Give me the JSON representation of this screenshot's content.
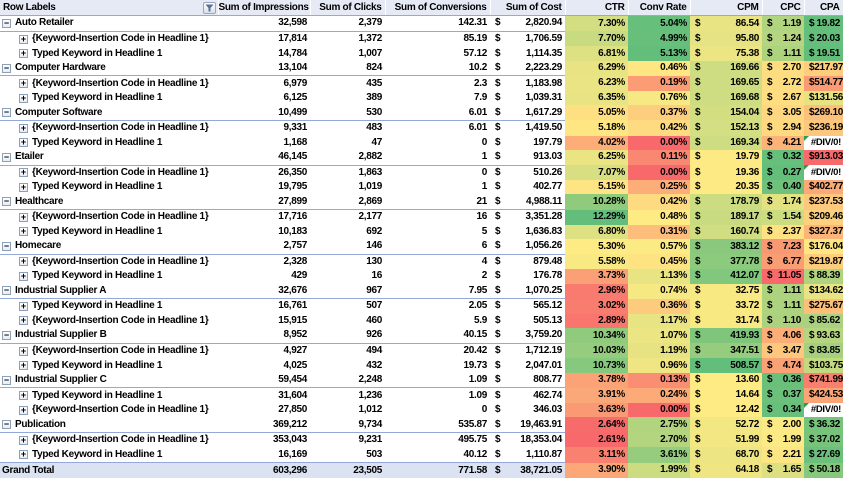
{
  "colors": {
    "border": "#95A9D8",
    "header_bg": "#E6EAF5",
    "grand_bg": "#DBE3F3",
    "error_triangle": "#2F9E41"
  },
  "icons": {
    "collapse": "−",
    "expand": "+",
    "filter": "funnel-icon"
  },
  "columns": [
    "Row Labels",
    "Sum of Impressions",
    "Sum of Clicks",
    "Sum of Conversions",
    "Sum of Cost",
    "CTR",
    "Conv Rate",
    "CPM",
    "CPC",
    "CPA"
  ],
  "rows": [
    {
      "type": "cat",
      "label": "Auto Retailer",
      "imp": "32,598",
      "clk": "2,379",
      "cnv": "142.31",
      "cost": "2,820.94",
      "ctr": [
        "7.30%",
        "#D2DE81"
      ],
      "cvr": [
        "5.04%",
        "#66BF7B"
      ],
      "cpm": [
        "86.54",
        "#E8E483"
      ],
      "cpc": [
        "1.19",
        "#B0D47F"
      ],
      "cpa": [
        "19.82",
        "#64BE7B"
      ]
    },
    {
      "type": "child",
      "label": "{Keyword-Insertion Code in Headline 1}",
      "imp": "17,814",
      "clk": "1,372",
      "cnv": "85.19",
      "cost": "1,706.59",
      "ctr": [
        "7.70%",
        "#C9DB80"
      ],
      "cvr": [
        "4.99%",
        "#68BF7B"
      ],
      "cpm": [
        "95.80",
        "#E5E383"
      ],
      "cpc": [
        "1.24",
        "#B6D580"
      ],
      "cpa": [
        "20.03",
        "#65BE7B"
      ]
    },
    {
      "type": "child",
      "label": "Typed Keyword in Headline 1",
      "imp": "14,784",
      "clk": "1,007",
      "cnv": "57.12",
      "cost": "1,114.35",
      "ctr": [
        "6.81%",
        "#DDE182"
      ],
      "cvr": [
        "5.13%",
        "#63BE7B"
      ],
      "cpm": [
        "75.38",
        "#EBE583"
      ],
      "cpc": [
        "1.11",
        "#ADD37F"
      ],
      "cpa": [
        "19.51",
        "#63BE7B"
      ]
    },
    {
      "type": "cat",
      "label": "Computer Hardware",
      "imp": "13,104",
      "clk": "824",
      "cnv": "10.2",
      "cost": "2,223.29",
      "ctr": [
        "6.29%",
        "#E9E483"
      ],
      "cvr": [
        "0.46%",
        "#FEE683"
      ],
      "cpm": [
        "169.66",
        "#CEDD81"
      ],
      "cpc": [
        "2.70",
        "#FEDD81"
      ],
      "cpa": [
        "217.97",
        "#FDCE7E"
      ]
    },
    {
      "type": "child",
      "label": "{Keyword-Insertion Code in Headline 1}",
      "imp": "6,979",
      "clk": "435",
      "cnv": "2.3",
      "cost": "1,183.98",
      "ctr": [
        "6.23%",
        "#EAE483"
      ],
      "cvr": [
        "0.19%",
        "#FB9C75"
      ],
      "cpm": [
        "169.65",
        "#CEDD81"
      ],
      "cpc": [
        "2.72",
        "#FEDD81"
      ],
      "cpa": [
        "514.77",
        "#FA9B73"
      ]
    },
    {
      "type": "child",
      "label": "Typed Keyword in Headline 1",
      "imp": "6,125",
      "clk": "389",
      "cnv": "7.9",
      "cost": "1,039.31",
      "ctr": [
        "6.35%",
        "#E8E383"
      ],
      "cvr": [
        "0.76%",
        "#F6E883"
      ],
      "cpm": [
        "169.68",
        "#CEDD81"
      ],
      "cpc": [
        "2.67",
        "#FEDE81"
      ],
      "cpa": [
        "131.56",
        "#E6E383"
      ]
    },
    {
      "type": "cat",
      "label": "Computer Software",
      "imp": "10,499",
      "clk": "530",
      "cnv": "6.01",
      "cost": "1,617.29",
      "ctr": [
        "5.05%",
        "#FEDF82"
      ],
      "cvr": [
        "0.37%",
        "#FDCE7E"
      ],
      "cpm": [
        "154.04",
        "#D3DE81"
      ],
      "cpc": [
        "3.05",
        "#FED780"
      ],
      "cpa": [
        "269.10",
        "#FCC07B"
      ]
    },
    {
      "type": "child",
      "label": "{Keyword-Insertion Code in Headline 1}",
      "imp": "9,331",
      "clk": "483",
      "cnv": "6.01",
      "cost": "1,419.50",
      "ctr": [
        "5.18%",
        "#FEE683"
      ],
      "cvr": [
        "0.42%",
        "#FEDB81"
      ],
      "cpm": [
        "152.13",
        "#D4DE82"
      ],
      "cpc": [
        "2.94",
        "#FED980"
      ],
      "cpa": [
        "236.19",
        "#FDC87D"
      ]
    },
    {
      "type": "child",
      "label": "Typed Keyword in Headline 1",
      "imp": "1,168",
      "clk": "47",
      "cnv": "0",
      "cost": "197.79",
      "ctr": [
        "4.02%",
        "#FCAD78"
      ],
      "cvr": [
        "0.00%",
        "#F8696B"
      ],
      "cpm": [
        "169.34",
        "#CEDD81"
      ],
      "cpc": [
        "4.21",
        "#FCB377"
      ],
      "cpa": [
        "#DIV/0!",
        "#FFFFFF",
        "err"
      ]
    },
    {
      "type": "cat",
      "label": "Etailer",
      "imp": "46,145",
      "clk": "2,882",
      "cnv": "1",
      "cost": "913.03",
      "ctr": [
        "6.25%",
        "#EAE483"
      ],
      "cvr": [
        "0.11%",
        "#FA8771"
      ],
      "cpm": [
        "19.79",
        "#FDEA84"
      ],
      "cpc": [
        "0.32",
        "#66BF7B"
      ],
      "cpa": [
        "913.03",
        "#F8696B"
      ]
    },
    {
      "type": "child",
      "label": "{Keyword-Insertion Code in Headline 1}",
      "imp": "26,350",
      "clk": "1,863",
      "cnv": "0",
      "cost": "510.26",
      "ctr": [
        "7.07%",
        "#D8DF82"
      ],
      "cvr": [
        "0.00%",
        "#F8696B"
      ],
      "cpm": [
        "19.36",
        "#FDEA84"
      ],
      "cpc": [
        "0.27",
        "#63BE7B"
      ],
      "cpa": [
        "#DIV/0!",
        "#FFFFFF",
        "err"
      ]
    },
    {
      "type": "child",
      "label": "Typed Keyword in Headline 1",
      "imp": "19,795",
      "clk": "1,019",
      "cnv": "1",
      "cost": "402.77",
      "ctr": [
        "5.15%",
        "#FEE483"
      ],
      "cvr": [
        "0.25%",
        "#FCAD78"
      ],
      "cpm": [
        "20.35",
        "#FDEA84"
      ],
      "cpc": [
        "0.40",
        "#6FC17C"
      ],
      "cpa": [
        "402.77",
        "#FBA976"
      ]
    },
    {
      "type": "cat",
      "label": "Healthcare",
      "imp": "27,899",
      "clk": "2,869",
      "cnv": "21",
      "cost": "4,988.11",
      "ctr": [
        "10.28%",
        "#90CB7D"
      ],
      "cvr": [
        "0.42%",
        "#FEDB81"
      ],
      "cpm": [
        "178.79",
        "#CBDC81"
      ],
      "cpc": [
        "1.74",
        "#E2E282"
      ],
      "cpa": [
        "237.53",
        "#FDC87D"
      ]
    },
    {
      "type": "child",
      "label": "{Keyword-Insertion Code in Headline 1}",
      "imp": "17,716",
      "clk": "2,177",
      "cnv": "16",
      "cost": "3,351.28",
      "ctr": [
        "12.29%",
        "#63BE7B"
      ],
      "cvr": [
        "0.48%",
        "#FFEB84"
      ],
      "cpm": [
        "189.17",
        "#C8DB81"
      ],
      "cpc": [
        "1.54",
        "#CCDC81"
      ],
      "cpa": [
        "209.46",
        "#FDD07E"
      ]
    },
    {
      "type": "child",
      "label": "Typed Keyword in Headline 1",
      "imp": "10,183",
      "clk": "692",
      "cnv": "5",
      "cost": "1,636.83",
      "ctr": [
        "6.80%",
        "#DEE182"
      ],
      "cvr": [
        "0.31%",
        "#FDBD7B"
      ],
      "cpm": [
        "160.74",
        "#D1DD81"
      ],
      "cpc": [
        "2.37",
        "#FEE182"
      ],
      "cpa": [
        "327.37",
        "#FCB579"
      ]
    },
    {
      "type": "cat",
      "label": "Homecare",
      "imp": "2,757",
      "clk": "146",
      "cnv": "6",
      "cost": "1,056.26",
      "ctr": [
        "5.30%",
        "#FFEB84"
      ],
      "cvr": [
        "0.57%",
        "#FCEA84"
      ],
      "cpm": [
        "383.12",
        "#8AC97D"
      ],
      "cpc": [
        "7.23",
        "#F99973"
      ],
      "cpa": [
        "176.04",
        "#FEE783"
      ]
    },
    {
      "type": "child",
      "label": "{Keyword-Insertion Code in Headline 1}",
      "imp": "2,328",
      "clk": "130",
      "cnv": "4",
      "cost": "879.48",
      "ctr": [
        "5.58%",
        "#F9E983"
      ],
      "cvr": [
        "0.45%",
        "#FEE382"
      ],
      "cpm": [
        "377.78",
        "#8CCA7E"
      ],
      "cpc": [
        "6.77",
        "#F99D74"
      ],
      "cpa": [
        "219.87",
        "#FDCD7E"
      ]
    },
    {
      "type": "child",
      "label": "Typed Keyword in Headline 1",
      "imp": "429",
      "clk": "16",
      "cnv": "2",
      "cost": "176.78",
      "ctr": [
        "3.73%",
        "#FB9F76"
      ],
      "cvr": [
        "1.13%",
        "#E9E483"
      ],
      "cpm": [
        "412.07",
        "#81C77D"
      ],
      "cpc": [
        "11.05",
        "#F8696B"
      ],
      "cpa": [
        "88.39",
        "#AFD37F"
      ]
    },
    {
      "type": "cat",
      "label": "Industrial Supplier A",
      "imp": "32,676",
      "clk": "967",
      "cnv": "7.95",
      "cost": "1,070.25",
      "ctr": [
        "2.96%",
        "#F97A6E"
      ],
      "cvr": [
        "0.74%",
        "#F6E883"
      ],
      "cpm": [
        "32.75",
        "#F9E983"
      ],
      "cpc": [
        "1.11",
        "#ADD37F"
      ],
      "cpa": [
        "134.62",
        "#E9E483"
      ]
    },
    {
      "type": "child",
      "label": "Typed Keyword in Headline 1",
      "imp": "16,761",
      "clk": "507",
      "cnv": "2.05",
      "cost": "565.12",
      "ctr": [
        "3.02%",
        "#F97D6E"
      ],
      "cvr": [
        "0.36%",
        "#FDCB7E"
      ],
      "cpm": [
        "33.72",
        "#F9E983"
      ],
      "cpc": [
        "1.11",
        "#ADD37F"
      ],
      "cpa": [
        "275.67",
        "#FCBE7B"
      ]
    },
    {
      "type": "child",
      "label": "{Keyword-Insertion Code in Headline 1}",
      "imp": "15,915",
      "clk": "460",
      "cnv": "5.9",
      "cost": "505.13",
      "ctr": [
        "2.89%",
        "#F8766D"
      ],
      "cvr": [
        "1.17%",
        "#E8E483"
      ],
      "cpm": [
        "31.74",
        "#F9E983"
      ],
      "cpc": [
        "1.10",
        "#ACD27F"
      ],
      "cpa": [
        "85.62",
        "#A9D17F"
      ]
    },
    {
      "type": "cat",
      "label": "Industrial Supplier B",
      "imp": "8,952",
      "clk": "926",
      "cnv": "40.15",
      "cost": "3,759.20",
      "ctr": [
        "10.34%",
        "#8FCA7D"
      ],
      "cvr": [
        "1.07%",
        "#EBE583"
      ],
      "cpm": [
        "419.93",
        "#7FC67C"
      ],
      "cpc": [
        "4.06",
        "#FBAE78"
      ],
      "cpa": [
        "93.63",
        "#B5D580"
      ]
    },
    {
      "type": "child",
      "label": "{Keyword-Insertion Code in Headline 1}",
      "imp": "4,927",
      "clk": "494",
      "cnv": "20.42",
      "cost": "1,712.19",
      "ctr": [
        "10.03%",
        "#95CC7E"
      ],
      "cvr": [
        "1.19%",
        "#E7E383"
      ],
      "cpm": [
        "347.51",
        "#95CC7E"
      ],
      "cpc": [
        "3.47",
        "#FDC87D"
      ],
      "cpa": [
        "83.85",
        "#A5D07F"
      ]
    },
    {
      "type": "child",
      "label": "Typed Keyword in Headline 1",
      "imp": "4,025",
      "clk": "432",
      "cnv": "19.73",
      "cost": "2,047.01",
      "ctr": [
        "10.73%",
        "#86C87D"
      ],
      "cvr": [
        "0.96%",
        "#EFE683"
      ],
      "cpm": [
        "508.57",
        "#63BE7B"
      ],
      "cpc": [
        "4.74",
        "#FAA175"
      ],
      "cpa": [
        "103.75",
        "#C2D980"
      ]
    },
    {
      "type": "cat",
      "label": "Industrial Supplier C",
      "imp": "59,454",
      "clk": "2,248",
      "cnv": "1.09",
      "cost": "808.77",
      "ctr": [
        "3.78%",
        "#FBA276"
      ],
      "cvr": [
        "0.13%",
        "#FA8E72"
      ],
      "cpm": [
        "13.60",
        "#FFEB84"
      ],
      "cpc": [
        "0.36",
        "#6AC07B"
      ],
      "cpa": [
        "741.99",
        "#F9806F"
      ]
    },
    {
      "type": "child",
      "label": "Typed Keyword in Headline 1",
      "imp": "31,604",
      "clk": "1,236",
      "cnv": "1.09",
      "cost": "462.74",
      "ctr": [
        "3.91%",
        "#FBA878"
      ],
      "cvr": [
        "0.24%",
        "#FCAA78"
      ],
      "cpm": [
        "14.64",
        "#FEEB84"
      ],
      "cpc": [
        "0.37",
        "#6BC07C"
      ],
      "cpa": [
        "424.53",
        "#FBA576"
      ]
    },
    {
      "type": "child",
      "label": "{Keyword-Insertion Code in Headline 1}",
      "imp": "27,850",
      "clk": "1,012",
      "cnv": "0",
      "cost": "346.03",
      "ctr": [
        "3.63%",
        "#FA9A74"
      ],
      "cvr": [
        "0.00%",
        "#F8696B"
      ],
      "cpm": [
        "12.42",
        "#FFEB84"
      ],
      "cpc": [
        "0.34",
        "#68BF7B"
      ],
      "cpa": [
        "#DIV/0!",
        "#FFFFFF",
        "err"
      ]
    },
    {
      "type": "cat",
      "label": "Publication",
      "imp": "369,212",
      "clk": "9,734",
      "cnv": "535.87",
      "cost": "19,463.91",
      "ctr": [
        "2.64%",
        "#F86B6B"
      ],
      "cvr": [
        "2.75%",
        "#B3D47F"
      ],
      "cpm": [
        "52.72",
        "#F2E783"
      ],
      "cpc": [
        "2.00",
        "#FCEA84"
      ],
      "cpa": [
        "36.32",
        "#76C37C"
      ]
    },
    {
      "type": "child",
      "label": "{Keyword-Insertion Code in Headline 1}",
      "imp": "353,043",
      "clk": "9,231",
      "cnv": "495.75",
      "cost": "18,353.04",
      "ctr": [
        "2.61%",
        "#F8696B"
      ],
      "cvr": [
        "2.70%",
        "#B4D57F"
      ],
      "cpm": [
        "51.99",
        "#F2E783"
      ],
      "cpc": [
        "1.99",
        "#FCEA84"
      ],
      "cpa": [
        "37.02",
        "#77C37C"
      ]
    },
    {
      "type": "child",
      "label": "Typed Keyword in Headline 1",
      "imp": "16,169",
      "clk": "503",
      "cnv": "40.12",
      "cost": "1,110.87",
      "ctr": [
        "3.11%",
        "#F98170"
      ],
      "cvr": [
        "3.61%",
        "#96CC7E"
      ],
      "cpm": [
        "68.70",
        "#EDE583"
      ],
      "cpc": [
        "2.21",
        "#FBE683"
      ],
      "cpa": [
        "27.69",
        "#6CC07C"
      ]
    },
    {
      "type": "grand",
      "label": "Grand Total",
      "imp": "603,296",
      "clk": "23,505",
      "cnv": "771.58",
      "cost": "38,721.05",
      "ctr": [
        "3.90%",
        "#FBA777"
      ],
      "cvr": [
        "1.99%",
        "#CCDC81"
      ],
      "cpm": [
        "64.18",
        "#EFE683"
      ],
      "cpc": [
        "1.65",
        "#DDE082"
      ],
      "cpa": [
        "50.18",
        "#86C87D"
      ]
    }
  ],
  "currency_symbol": "$"
}
